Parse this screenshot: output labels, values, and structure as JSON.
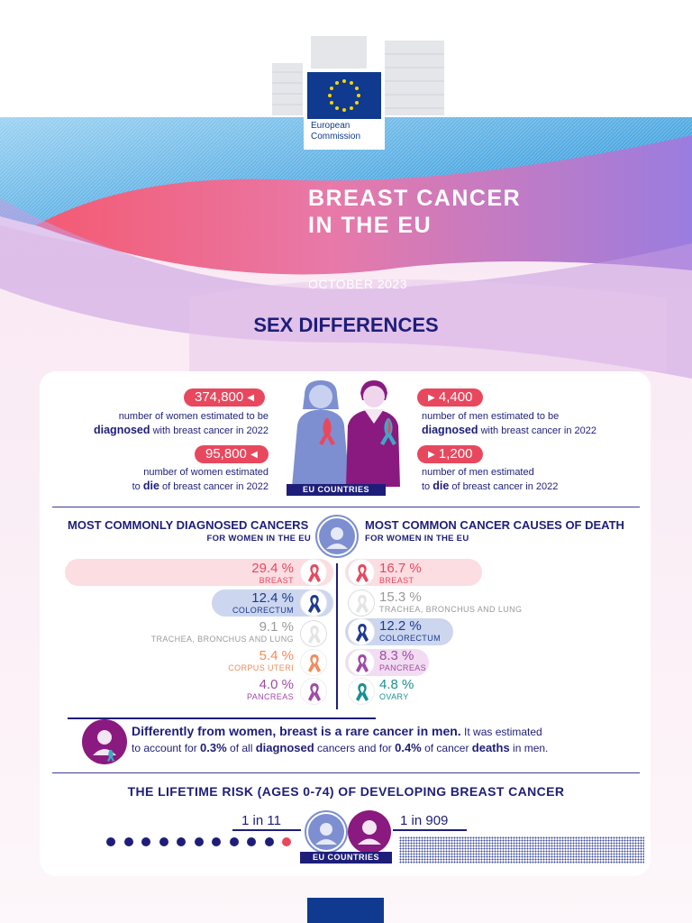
{
  "header": {
    "logo_line1": "European",
    "logo_line2": "Commission",
    "title": "BREAST CANCER\nIN THE EU",
    "date": "OCTOBER 2023"
  },
  "section_title": "SEX DIFFERENCES",
  "stats": {
    "women_diagnosed": {
      "value": "374,800",
      "text_pre": "number of women estimated to be",
      "emph": "diagnosed",
      "text_post": "with breast cancer in 2022"
    },
    "women_die": {
      "value": "95,800",
      "text_pre": "number of women estimated",
      "emph_pre": "to",
      "emph": "die",
      "text_post": "of breast cancer in 2022"
    },
    "men_diagnosed": {
      "value": "4,400",
      "text_pre": "number of men estimated to be",
      "emph": "diagnosed",
      "text_post": "with breast cancer in 2022"
    },
    "men_die": {
      "value": "1,200",
      "text_pre": "number of men estimated",
      "emph_pre": "to",
      "emph": "die",
      "text_post": "of breast cancer in 2022"
    },
    "eu_label": "EU COUNTRIES"
  },
  "diagnosed": {
    "heading": "MOST COMMONLY DIAGNOSED CANCERS",
    "sub": "FOR WOMEN IN THE EU",
    "items": [
      {
        "value": "29.4 %",
        "label": "BREAST",
        "color": "#e8485e",
        "bar": "#fbdde2",
        "share": 29.4
      },
      {
        "value": "12.4 %",
        "label": "COLORECTUM",
        "color": "#1f3a8f",
        "bar": "#ccd6ee",
        "share": 12.4
      },
      {
        "value": "9.1 %",
        "label": "TRACHEA, BRONCHUS AND LUNG",
        "color": "#9a9a9a",
        "bar": "#ffffff",
        "share": 9.1
      },
      {
        "value": "5.4 %",
        "label": "CORPUS UTERI",
        "color": "#f08c5c",
        "bar": "#ffffff",
        "share": 5.4
      },
      {
        "value": "4.0 %",
        "label": "PANCREAS",
        "color": "#a04aa6",
        "bar": "#ffffff",
        "share": 4.0
      }
    ]
  },
  "deaths": {
    "heading": "MOST COMMON CANCER CAUSES OF DEATH",
    "sub": "FOR WOMEN IN THE EU",
    "items": [
      {
        "value": "16.7 %",
        "label": "BREAST",
        "color": "#e8485e",
        "bar": "#fbdde2",
        "share": 16.7
      },
      {
        "value": "15.3 %",
        "label": "TRACHEA, BRONCHUS AND LUNG",
        "color": "#9a9a9a",
        "bar": "#ffffff",
        "share": 15.3
      },
      {
        "value": "12.2 %",
        "label": "COLORECTUM",
        "color": "#1f3a8f",
        "bar": "#ccd6ee",
        "share": 12.2
      },
      {
        "value": "8.3 %",
        "label": "PANCREAS",
        "color": "#a04aa6",
        "bar": "#f1dcf1",
        "share": 8.3
      },
      {
        "value": "4.8 %",
        "label": "OVARY",
        "color": "#1a8f8f",
        "bar": "#ffffff",
        "share": 4.8
      }
    ]
  },
  "men_note": {
    "lead": "Differently from women, breast is a rare cancer in men.",
    "rest1": " It was estimated",
    "rest2": "to account for ",
    "pct1": "0.3%",
    "rest3": " of all ",
    "word1": "diagnosed",
    "rest4": " cancers and for ",
    "pct2": "0.4%",
    "rest5": " of cancer ",
    "word2": "deaths",
    "rest6": " in men."
  },
  "risk": {
    "title": "THE LIFETIME RISK (AGES 0-74) OF DEVELOPING BREAST CANCER",
    "women": "1 in 11",
    "men": "1 in 909",
    "eu_label": "EU COUNTRIES"
  },
  "colors": {
    "navy": "#1e1e7a",
    "pink": "#e8485e",
    "purple": "#8a1a7f",
    "women_blue": "#7d8fd0",
    "eu_blue": "#0f3a8f"
  }
}
